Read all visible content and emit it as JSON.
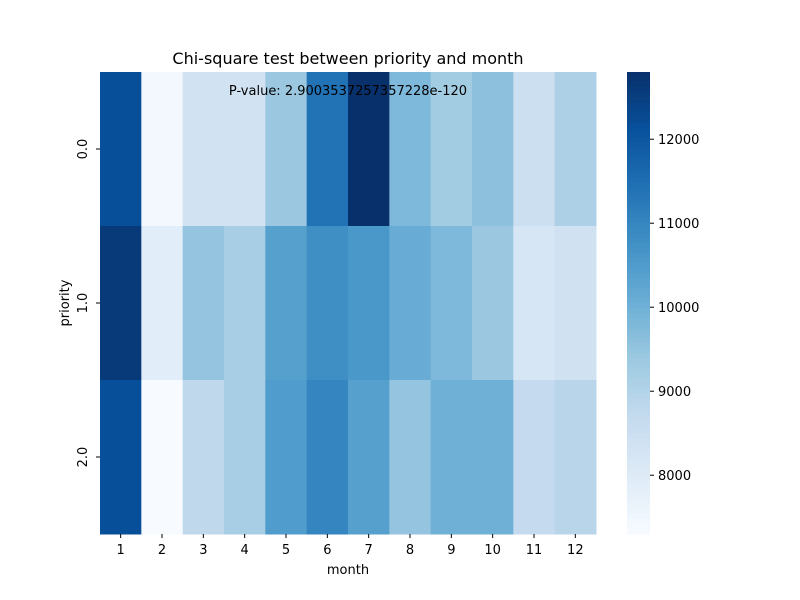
{
  "chart_data": {
    "type": "heatmap",
    "title": "Chi-square test between priority and month",
    "annotation": "P-value: 2.9003537257357228e-120",
    "xlabel": "month",
    "ylabel": "priority",
    "x_categories": [
      "1",
      "2",
      "3",
      "4",
      "5",
      "6",
      "7",
      "8",
      "9",
      "10",
      "11",
      "12"
    ],
    "y_categories": [
      "0.0",
      "1.0",
      "2.0"
    ],
    "values": [
      [
        12150,
        7450,
        8350,
        8350,
        9400,
        11400,
        12800,
        9800,
        9300,
        9600,
        8500,
        9100
      ],
      [
        12600,
        7900,
        9500,
        9200,
        10400,
        10800,
        10600,
        10100,
        9800,
        9400,
        8200,
        8400
      ],
      [
        12150,
        7300,
        8800,
        9200,
        10500,
        11000,
        10400,
        9500,
        10000,
        10000,
        8700,
        8900
      ]
    ],
    "colorbar": {
      "min": 7300,
      "max": 12800,
      "ticks": [
        8000,
        9000,
        10000,
        11000,
        12000
      ],
      "tick_labels": [
        "8000",
        "9000",
        "10000",
        "11000",
        "12000"
      ]
    },
    "colormap": "Blues",
    "colors": [
      "#f7fbff",
      "#deebf7",
      "#c6dbef",
      "#9ecae1",
      "#6baed6",
      "#4292c6",
      "#2171b5",
      "#08519c",
      "#08306b"
    ]
  }
}
